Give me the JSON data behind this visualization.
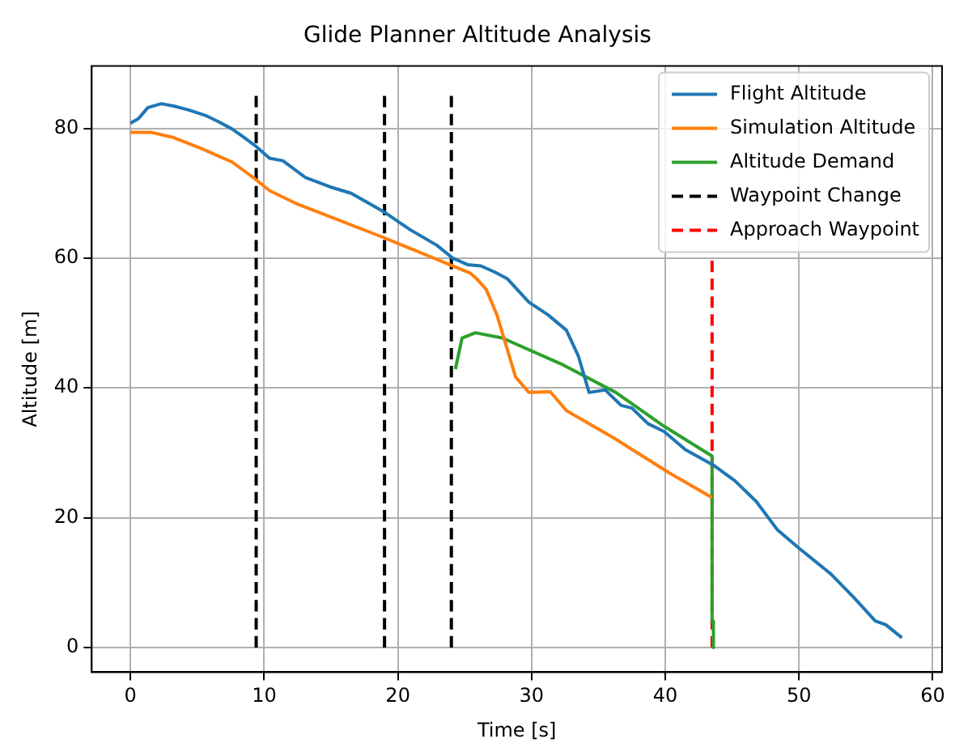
{
  "chart_data": {
    "type": "line",
    "title": "Glide Planner Altitude Analysis",
    "xlabel": "Time [s]",
    "ylabel": "Altitude [m]",
    "xlim": [
      -2.9,
      60.7
    ],
    "ylim": [
      -3.8,
      89.6
    ],
    "xticks": [
      0,
      10,
      20,
      30,
      40,
      50,
      60
    ],
    "yticks": [
      0,
      20,
      40,
      60,
      80
    ],
    "grid": true,
    "legend": "top right",
    "marker": "none",
    "series": [
      {
        "name": "Flight Altitude",
        "color": "#1f77b4",
        "line_style": "solid",
        "x": [
          0,
          0.6,
          1.3,
          2.3,
          3.3,
          4.4,
          5.6,
          6.6,
          7.6,
          8.5,
          9.4,
          10.4,
          11.4,
          13.1,
          14.9,
          16.5,
          18.9,
          20.9,
          22.9,
          24.1,
          25.2,
          26.2,
          27.2,
          28.2,
          29.8,
          31.2,
          32.6,
          33.5,
          34.3,
          35.5,
          36.7,
          37.5,
          38.7,
          39.9,
          41.5,
          43.6,
          45.2,
          46.8,
          48.4,
          50,
          52.4,
          54.1,
          55.7,
          56.5,
          57.7
        ],
        "values": [
          80.8,
          81.5,
          83.2,
          83.8,
          83.4,
          82.8,
          82,
          81,
          79.9,
          78.6,
          77.2,
          75.4,
          75,
          72.4,
          71,
          70,
          67.2,
          64.4,
          62,
          60,
          59,
          58.8,
          57.9,
          56.8,
          53.2,
          51.3,
          48.9,
          44.9,
          39.3,
          39.7,
          37.3,
          36.9,
          34.5,
          33.3,
          30.5,
          28.1,
          25.7,
          22.5,
          18.1,
          15.3,
          11.3,
          7.7,
          4.1,
          3.5,
          1.5
        ]
      },
      {
        "name": "Simulation Altitude",
        "color": "#ff7f0e",
        "line_style": "solid",
        "x": [
          0,
          1.5,
          3.2,
          5.4,
          7.6,
          9.2,
          10.4,
          12.4,
          18.9,
          25.4,
          25.9,
          26.6,
          27.4,
          28.8,
          29.8,
          31.4,
          32.6,
          36.3,
          40.3,
          43.5
        ],
        "values": [
          79.4,
          79.4,
          78.6,
          76.8,
          74.8,
          72.4,
          70.4,
          68.4,
          63.2,
          57.7,
          56.8,
          55.2,
          51.3,
          41.7,
          39.3,
          39.4,
          36.5,
          32.1,
          26.9,
          23.1
        ]
      },
      {
        "name": "Altitude Demand",
        "color": "#2ca02c",
        "line_style": "solid",
        "x": [
          24.3,
          24.8,
          25.8,
          27.8,
          32.2,
          36.3,
          39.9,
          43.5,
          43.5,
          43.6,
          43.6
        ],
        "values": [
          42.9,
          47.7,
          48.5,
          47.7,
          43.7,
          39.3,
          34.1,
          29.5,
          4,
          4,
          0
        ]
      },
      {
        "name": "Waypoint Change",
        "color": "#000000",
        "line_style": "dashed",
        "x": [
          9.4,
          9.4
        ],
        "values": [
          0,
          85
        ]
      },
      {
        "color": "#000000",
        "line_style": "dashed",
        "x": [
          19,
          19
        ],
        "values": [
          0,
          85
        ]
      },
      {
        "color": "#000000",
        "line_style": "dashed",
        "x": [
          24,
          24
        ],
        "values": [
          0,
          85
        ]
      },
      {
        "name": "Approach Waypoint",
        "color": "#ff0000",
        "line_style": "dashed",
        "x": [
          43.5,
          43.5
        ],
        "values": [
          0,
          59.6
        ]
      }
    ]
  }
}
